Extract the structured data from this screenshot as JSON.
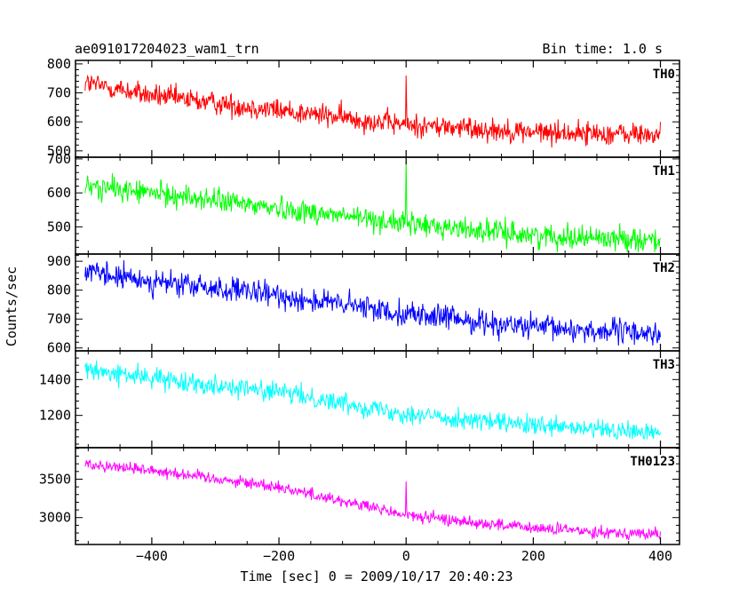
{
  "chart_data": {
    "type": "line",
    "title": "ae091017204023_wam1_trn",
    "subtitle": "Bin time: 1.0 s",
    "xlabel": "Time [sec] 0 = 2009/10/17 20:40:23",
    "ylabel": "Counts/sec",
    "xlim": [
      -520,
      430
    ],
    "x_ticks": [
      -400,
      -200,
      0,
      200,
      400
    ],
    "x_tick_labels": [
      "−400",
      "−200",
      "0",
      "200",
      "400"
    ],
    "x_range": [
      -505,
      400
    ],
    "bin_time_s": 1.0,
    "grid": false,
    "series": [
      {
        "name": "TH0",
        "color": "#ff0000",
        "ylim": [
          478,
          812
        ],
        "y_ticks": [
          500,
          600,
          700,
          800
        ],
        "y_tick_labels": [
          "500",
          "600",
          "700",
          "800"
        ],
        "trend": [
          [
            -505,
            735
          ],
          [
            -400,
            690
          ],
          [
            -200,
            640
          ],
          [
            0,
            590
          ],
          [
            200,
            565
          ],
          [
            400,
            555
          ]
        ],
        "noise": 28,
        "spikes": [
          [
            0,
            760
          ]
        ]
      },
      {
        "name": "TH1",
        "color": "#00ff00",
        "ylim": [
          420,
          705
        ],
        "y_ticks": [
          500,
          600,
          700
        ],
        "y_tick_labels": [
          "500",
          "600",
          "700"
        ],
        "trend": [
          [
            -505,
            620
          ],
          [
            -400,
            600
          ],
          [
            -200,
            555
          ],
          [
            0,
            510
          ],
          [
            200,
            475
          ],
          [
            400,
            462
          ]
        ],
        "noise": 24,
        "spikes": [
          [
            0,
            700
          ]
        ]
      },
      {
        "name": "TH2",
        "color": "#0000ff",
        "ylim": [
          590,
          925
        ],
        "y_ticks": [
          600,
          700,
          800,
          900
        ],
        "y_tick_labels": [
          "600",
          "700",
          "800",
          "900"
        ],
        "trend": [
          [
            -505,
            860
          ],
          [
            -400,
            830
          ],
          [
            -200,
            780
          ],
          [
            0,
            720
          ],
          [
            200,
            670
          ],
          [
            400,
            650
          ]
        ],
        "noise": 30,
        "spikes": []
      },
      {
        "name": "TH3",
        "color": "#00ffff",
        "ylim": [
          1020,
          1560
        ],
        "y_ticks": [
          1200,
          1400
        ],
        "y_tick_labels": [
          "1200",
          "1400"
        ],
        "trend": [
          [
            -505,
            1450
          ],
          [
            -400,
            1410
          ],
          [
            -200,
            1330
          ],
          [
            0,
            1210
          ],
          [
            200,
            1140
          ],
          [
            400,
            1100
          ]
        ],
        "noise": 38,
        "spikes": []
      },
      {
        "name": "TH0123",
        "color": "#ff00ff",
        "ylim": [
          2650,
          3910
        ],
        "y_ticks": [
          3000,
          3500
        ],
        "y_tick_labels": [
          "3000",
          "3500"
        ],
        "trend": [
          [
            -505,
            3700
          ],
          [
            -400,
            3620
          ],
          [
            -200,
            3400
          ],
          [
            0,
            3030
          ],
          [
            200,
            2860
          ],
          [
            400,
            2780
          ]
        ],
        "noise": 55,
        "spikes": [
          [
            0,
            3470
          ]
        ]
      }
    ]
  }
}
